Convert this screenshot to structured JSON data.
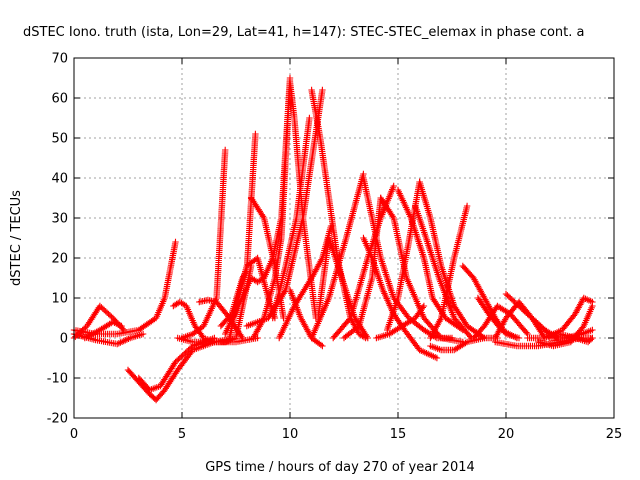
{
  "chart_data": {
    "type": "scatter",
    "title": "dSTEC Iono. truth (ista, Lon=29, Lat=41, h=147): STEC-STEC_elemax in phase cont. a",
    "xlabel": "GPS time / hours of day 270 of year 2014",
    "ylabel": "dSTEC  / TECUs",
    "xlim": [
      0,
      25
    ],
    "ylim": [
      -20,
      70
    ],
    "xticks": [
      0,
      5,
      10,
      15,
      20,
      25
    ],
    "yticks": [
      -20,
      -10,
      0,
      10,
      20,
      30,
      40,
      50,
      60,
      70
    ],
    "grid": true,
    "marker": "plus",
    "color": "#ff0000",
    "series": [
      {
        "x": [
          0.0,
          1.0,
          2.0,
          3.0,
          3.8,
          4.2,
          4.7
        ],
        "y": [
          2,
          1,
          1,
          2,
          5,
          10,
          24
        ]
      },
      {
        "x": [
          0.0,
          0.6,
          1.2,
          1.8,
          2.3
        ],
        "y": [
          0,
          3,
          8,
          5,
          2
        ]
      },
      {
        "x": [
          0.0,
          1.0,
          2.0,
          2.6,
          3.2
        ],
        "y": [
          1,
          -0.5,
          -1.5,
          0,
          1
        ]
      },
      {
        "x": [
          0.5,
          1.2,
          1.8,
          2.2
        ],
        "y": [
          0,
          2,
          4,
          3
        ]
      },
      {
        "x": [
          2.5,
          3.0,
          3.5,
          3.8,
          4.2,
          4.8,
          5.5,
          6.5,
          7.5,
          8.5
        ],
        "y": [
          -8,
          -11,
          -14,
          -15.5,
          -13,
          -8,
          -3,
          -1,
          -1,
          0
        ]
      },
      {
        "x": [
          3.0,
          3.5,
          4.0,
          4.7,
          5.5,
          6.5
        ],
        "y": [
          -10,
          -13,
          -12,
          -6,
          -2,
          0
        ]
      },
      {
        "x": [
          4.6,
          4.9,
          5.2,
          5.6,
          6.0,
          6.5,
          7.0,
          7.5
        ],
        "y": [
          8,
          9,
          8,
          3,
          0,
          -1,
          -1,
          0
        ]
      },
      {
        "x": [
          5.0,
          5.5,
          6.0,
          6.6,
          7.0
        ],
        "y": [
          0,
          1,
          3,
          10,
          47
        ]
      },
      {
        "x": [
          5.8,
          6.2,
          6.6,
          7.2,
          7.8
        ],
        "y": [
          9,
          9.5,
          9,
          5,
          0
        ]
      },
      {
        "x": [
          4.8,
          5.5,
          6.5,
          7.5,
          8.2
        ],
        "y": [
          0,
          -1,
          -1,
          0,
          18
        ]
      },
      {
        "x": [
          6.8,
          7.3,
          7.8,
          8.0,
          8.4
        ],
        "y": [
          3,
          6,
          15,
          17,
          51
        ]
      },
      {
        "x": [
          7.0,
          8.2,
          8.5,
          8.8,
          9.2,
          9.6,
          10.0
        ],
        "y": [
          1,
          15,
          14,
          15,
          20,
          30,
          65
        ]
      },
      {
        "x": [
          8.2,
          8.8,
          9.3,
          9.7
        ],
        "y": [
          35,
          30,
          18,
          5
        ]
      },
      {
        "x": [
          7.2,
          7.6,
          8.0,
          8.5,
          9.0,
          9.3
        ],
        "y": [
          0,
          10,
          18,
          20,
          10,
          5
        ]
      },
      {
        "x": [
          8.3,
          8.8,
          9.3,
          9.6,
          10.0,
          10.2,
          10.6,
          11.2
        ],
        "y": [
          0,
          5,
          15,
          25,
          64,
          55,
          30,
          5
        ]
      },
      {
        "x": [
          8.0,
          9.0,
          9.8,
          10.6,
          11.5
        ],
        "y": [
          3,
          5,
          12,
          30,
          62
        ]
      },
      {
        "x": [
          9.2,
          9.8,
          10.3,
          10.9
        ],
        "y": [
          5,
          18,
          30,
          55
        ]
      },
      {
        "x": [
          9.5,
          10.2,
          11.0,
          11.5,
          11.9
        ],
        "y": [
          0,
          8,
          15,
          20,
          28
        ]
      },
      {
        "x": [
          11.0,
          11.4,
          11.8,
          12.2,
          12.8,
          13.2,
          13.5
        ],
        "y": [
          62,
          50,
          35,
          20,
          5,
          1,
          0
        ]
      },
      {
        "x": [
          10.0,
          10.5,
          11.0,
          11.5
        ],
        "y": [
          12,
          5,
          0,
          -2
        ]
      },
      {
        "x": [
          11.3,
          11.8,
          12.4,
          13.0,
          13.6
        ],
        "y": [
          5,
          25,
          15,
          5,
          0
        ]
      },
      {
        "x": [
          11.0,
          11.8,
          12.6,
          13.4
        ],
        "y": [
          0,
          10,
          25,
          41
        ]
      },
      {
        "x": [
          13.4,
          13.8,
          14.2,
          14.8,
          15.5,
          16.2,
          16.8,
          17.5
        ],
        "y": [
          40,
          30,
          20,
          10,
          5,
          2,
          0,
          0
        ]
      },
      {
        "x": [
          12.0,
          12.8,
          13.6,
          14.2,
          14.8
        ],
        "y": [
          0,
          5,
          20,
          30,
          38
        ]
      },
      {
        "x": [
          13.4,
          13.8,
          14.3,
          14.8,
          15.3,
          16.0,
          16.8
        ],
        "y": [
          25,
          20,
          12,
          6,
          2,
          -3,
          -5
        ]
      },
      {
        "x": [
          12.5,
          13.2,
          13.8,
          14.2
        ],
        "y": [
          0,
          3,
          15,
          35
        ]
      },
      {
        "x": [
          14.2,
          14.8,
          15.4,
          16.2,
          17.0,
          18.0
        ],
        "y": [
          35,
          30,
          15,
          5,
          0,
          -1
        ]
      },
      {
        "x": [
          15.0,
          15.6,
          16.2,
          16.6,
          17.2,
          18.0
        ],
        "y": [
          37,
          30,
          20,
          10,
          5,
          2
        ]
      },
      {
        "x": [
          14.5,
          15.0,
          15.5,
          16.0
        ],
        "y": [
          2,
          10,
          24,
          39
        ]
      },
      {
        "x": [
          16.0,
          16.5,
          17.0,
          17.6,
          18.2,
          19.0
        ],
        "y": [
          39,
          30,
          18,
          8,
          3,
          0
        ]
      },
      {
        "x": [
          15.8,
          16.3,
          16.9,
          17.6,
          18.4
        ],
        "y": [
          33,
          25,
          15,
          5,
          0
        ]
      },
      {
        "x": [
          14.0,
          14.6,
          15.2,
          15.8,
          16.2
        ],
        "y": [
          0,
          1,
          3,
          5,
          8
        ]
      },
      {
        "x": [
          16.5,
          17.0,
          17.6,
          18.2
        ],
        "y": [
          0,
          5,
          20,
          33
        ]
      },
      {
        "x": [
          16.5,
          17.0,
          17.6,
          18.2,
          19.0,
          19.6
        ],
        "y": [
          -2,
          -3,
          -3,
          -1,
          0,
          0
        ]
      },
      {
        "x": [
          18.0,
          18.5,
          19.0,
          19.5,
          20.0,
          20.6
        ],
        "y": [
          18,
          15,
          10,
          5,
          1,
          0
        ]
      },
      {
        "x": [
          18.7,
          19.2,
          19.8,
          20.5
        ],
        "y": [
          10,
          6,
          2,
          0
        ]
      },
      {
        "x": [
          18.5,
          19.0,
          19.6,
          20.2,
          21.0
        ],
        "y": [
          0,
          3,
          8,
          6,
          1
        ]
      },
      {
        "x": [
          19.5,
          20.0,
          20.6,
          21.2,
          21.8
        ],
        "y": [
          0,
          5,
          9,
          5,
          0
        ]
      },
      {
        "x": [
          20.0,
          20.6,
          21.2,
          21.8,
          22.4
        ],
        "y": [
          11,
          8,
          5,
          2,
          0
        ]
      },
      {
        "x": [
          20.8,
          21.4,
          22.0,
          22.4
        ],
        "y": [
          7,
          4,
          1,
          0
        ]
      },
      {
        "x": [
          19.5,
          20.5,
          21.5,
          22.5,
          23.5,
          24.0
        ],
        "y": [
          -1,
          -2,
          -2,
          -1,
          0,
          0
        ]
      },
      {
        "x": [
          21.0,
          21.8,
          22.6,
          23.2,
          23.6,
          24.0
        ],
        "y": [
          0,
          0,
          2,
          6,
          10,
          9
        ]
      },
      {
        "x": [
          21.5,
          22.2,
          23.0,
          23.6,
          24.0
        ],
        "y": [
          -1,
          -2,
          -1,
          3,
          8
        ]
      },
      {
        "x": [
          22.0,
          22.8,
          23.5,
          24.0
        ],
        "y": [
          0,
          0,
          1,
          2
        ]
      },
      {
        "x": [
          22.5,
          23.2,
          23.8,
          24.0
        ],
        "y": [
          1,
          0,
          -1,
          0
        ]
      }
    ]
  }
}
